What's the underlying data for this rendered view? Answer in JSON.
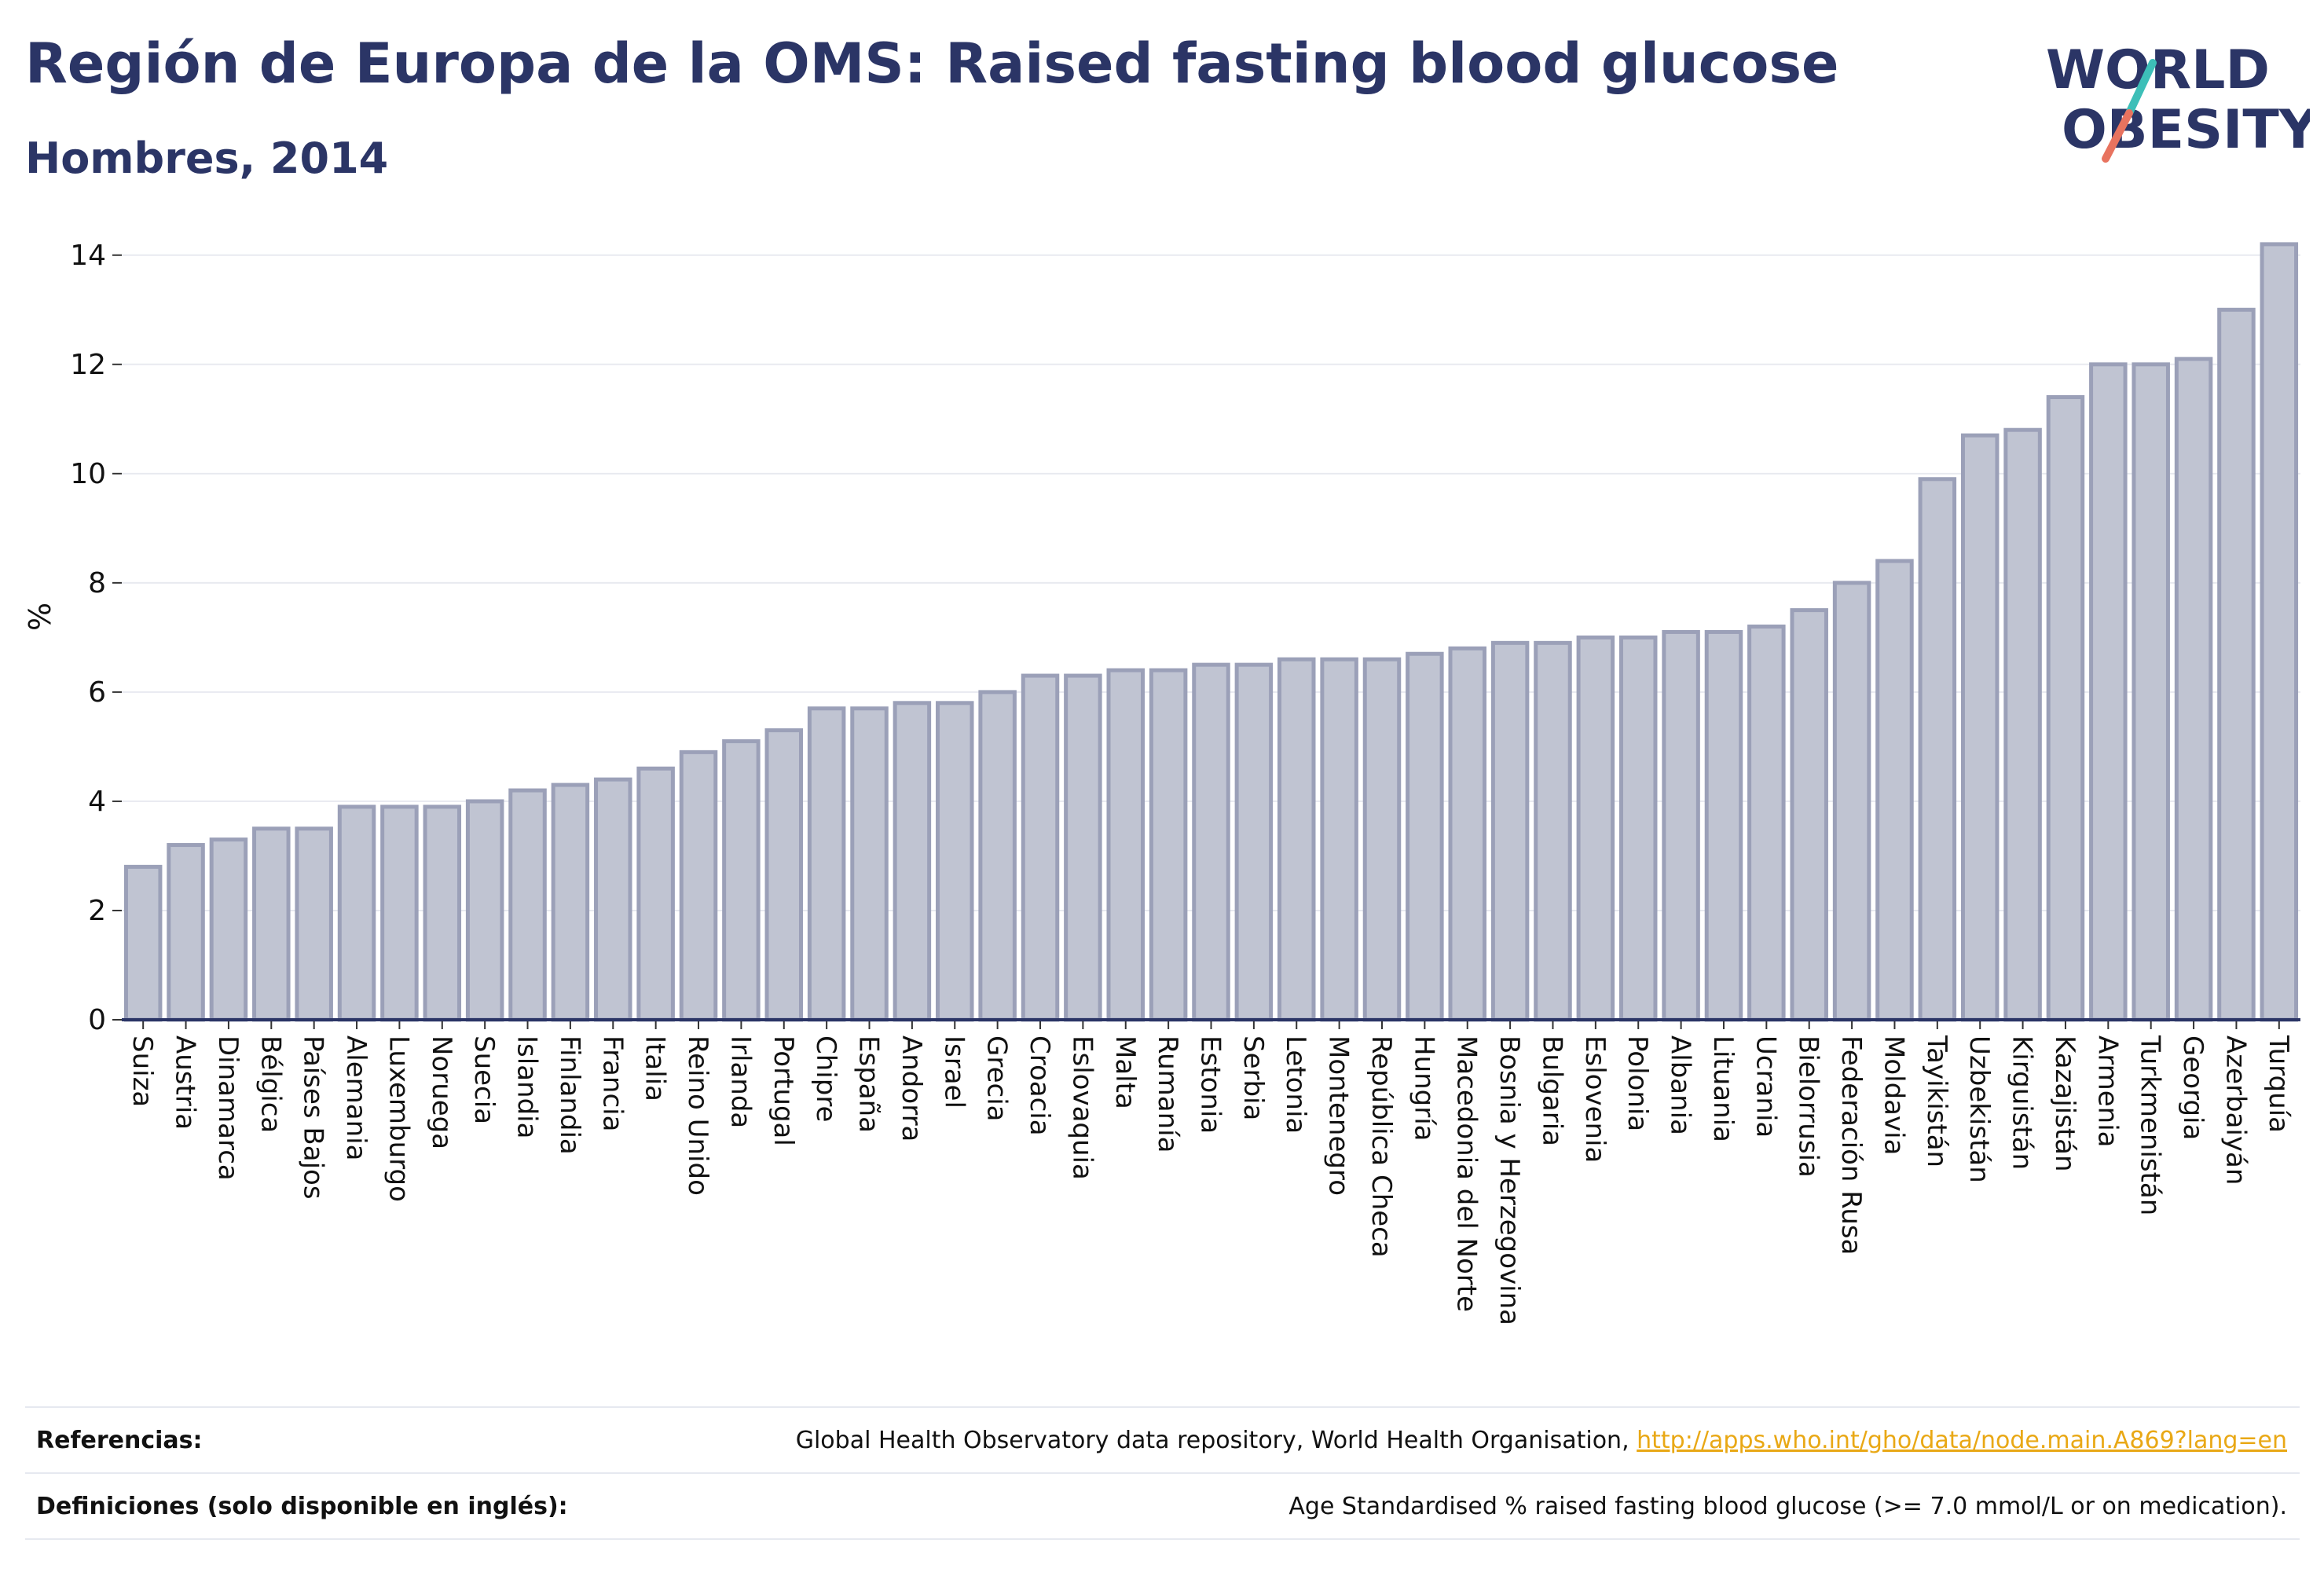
{
  "title": "Región de Europa de la OMS: Raised fasting blood glucose",
  "subtitle": "Hombres, 2014",
  "logo": {
    "line1": "WORLD",
    "line2": "OBESITY"
  },
  "colors": {
    "bar_fill": "#c0c4d2",
    "bar_stroke": "#9ba0b8",
    "title": "#2b3566",
    "link": "#e9a815",
    "logo_teal": "#3dbfb8",
    "logo_coral": "#e8735f"
  },
  "chart_data": {
    "type": "bar",
    "ylabel": "%",
    "ylim": [
      0,
      14.5
    ],
    "yticks": [
      0,
      2,
      4,
      6,
      8,
      10,
      12,
      14
    ],
    "grid": true,
    "categories": [
      "Suiza",
      "Austria",
      "Dinamarca",
      "Bélgica",
      "Países Bajos",
      "Alemania",
      "Luxemburgo",
      "Noruega",
      "Suecia",
      "Islandia",
      "Finlandia",
      "Francia",
      "Italia",
      "Reino Unido",
      "Irlanda",
      "Portugal",
      "Chipre",
      "España",
      "Andorra",
      "Israel",
      "Grecia",
      "Croacia",
      "Eslovaquia",
      "Malta",
      "Rumanía",
      "Estonia",
      "Serbia",
      "Letonia",
      "Montenegro",
      "República Checa",
      "Hungría",
      "Macedonia del Norte",
      "Bosnia y Herzegovina",
      "Bulgaria",
      "Eslovenia",
      "Polonia",
      "Albania",
      "Lituania",
      "Ucrania",
      "Bielorrusia",
      "Federación Rusa",
      "Moldavia",
      "Tayikistán",
      "Uzbekistán",
      "Kirguistán",
      "Kazajistán",
      "Armenia",
      "Turkmenistán",
      "Georgia",
      "Azerbaiyán",
      "Turquía"
    ],
    "values": [
      2.8,
      3.2,
      3.3,
      3.5,
      3.5,
      3.9,
      3.9,
      3.9,
      4.0,
      4.2,
      4.3,
      4.4,
      4.6,
      4.9,
      5.1,
      5.3,
      5.7,
      5.7,
      5.8,
      5.8,
      6.0,
      6.3,
      6.3,
      6.4,
      6.4,
      6.5,
      6.5,
      6.6,
      6.6,
      6.6,
      6.7,
      6.8,
      6.9,
      6.9,
      7.0,
      7.0,
      7.1,
      7.1,
      7.2,
      7.5,
      8.0,
      8.4,
      9.9,
      10.7,
      10.8,
      11.4,
      12.0,
      12.0,
      12.1,
      13.0,
      14.2
    ]
  },
  "footer": {
    "references_label": "Referencias:",
    "references_text": "Global Health Observatory data repository, World Health Organisation, ",
    "references_link": "http://apps.who.int/gho/data/node.main.A869?lang=en",
    "definitions_label": "Definiciones (solo disponible en inglés):",
    "definitions_text": "Age Standardised % raised fasting blood glucose (>= 7.0 mmol/L or on medication)."
  }
}
